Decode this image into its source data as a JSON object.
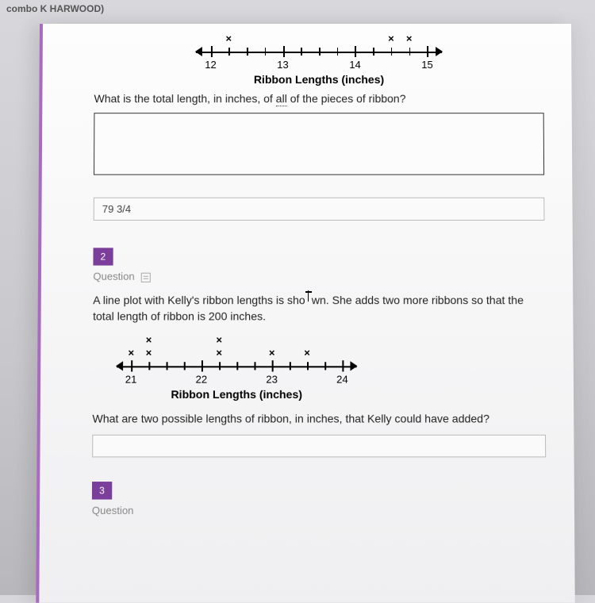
{
  "header": {
    "text": "combo K HARWOOD)"
  },
  "plot1": {
    "start": 12,
    "end": 15,
    "quarters": 4,
    "x_marks": [
      12.25,
      14.5,
      14.75
    ],
    "major_labels": [
      12,
      13,
      14,
      15
    ],
    "title": "Ribbon Lengths (inches)"
  },
  "q1": {
    "prompt_pre": "What is the total length, in inches, of ",
    "underlined": "all",
    "prompt_post": " of the pieces of ribbon?",
    "typed_answer": "79 3/4"
  },
  "q2": {
    "badge": "2",
    "label": "Question",
    "body_pre": "A line plot with Kelly's ribbon lengths is sho",
    "body_mid": "wn",
    "body_post": ". She adds two more ribbons so that the total length of ribbon is 200 inches.",
    "plot": {
      "start": 21,
      "end": 24,
      "quarters": 4,
      "x_rows": [
        [
          21.25,
          22.25
        ],
        [
          21.0,
          21.25,
          22.25,
          23.0,
          23.5
        ]
      ],
      "major_labels": [
        21,
        22,
        23,
        24
      ],
      "title": "Ribbon Lengths (inches)"
    },
    "prompt2": "What are two possible lengths of ribbon, in inches, that Kelly could have added?"
  },
  "q3": {
    "badge": "3",
    "label": "Question"
  }
}
